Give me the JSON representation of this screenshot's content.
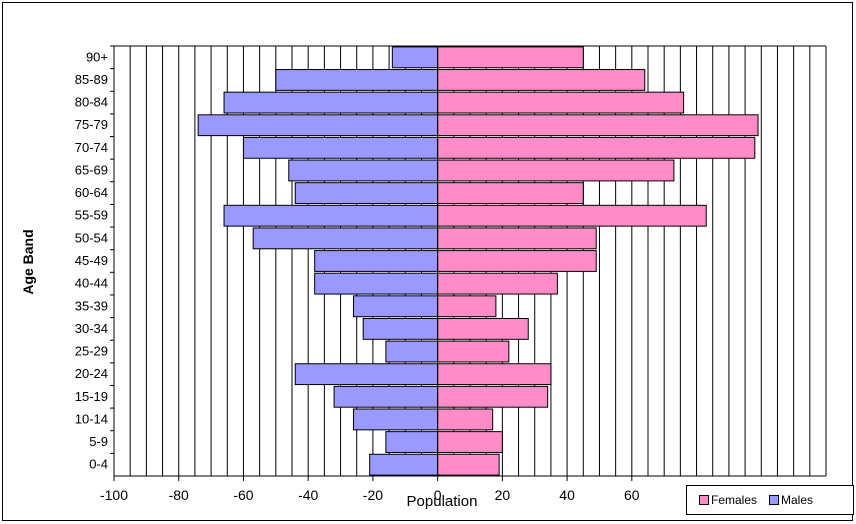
{
  "chart_data": {
    "type": "bar",
    "orientation": "horizontal",
    "subtype": "population-pyramid",
    "title": "",
    "xlabel": "Population",
    "ylabel": "Age Band",
    "categories": [
      "90+",
      "85-89",
      "80-84",
      "75-79",
      "70-74",
      "65-69",
      "60-64",
      "55-59",
      "50-54",
      "45-49",
      "40-44",
      "35-39",
      "30-34",
      "25-29",
      "20-24",
      "15-19",
      "10-14",
      "5-9",
      "0-4"
    ],
    "xlim": [
      -100,
      120
    ],
    "xticks": [
      -100,
      -80,
      -60,
      -40,
      -20,
      0,
      20,
      40,
      60
    ],
    "xtick_labels": [
      "-100",
      "-80",
      "-60",
      "-40",
      "-20",
      "0",
      "20",
      "40",
      "60"
    ],
    "grid": "vertical lines every 5 units",
    "legend_position": "bottom-right",
    "series": [
      {
        "name": "Males",
        "color": "#9999ff",
        "values": [
          -14,
          -50,
          -66,
          -74,
          -60,
          -46,
          -44,
          -66,
          -57,
          -38,
          -38,
          -26,
          -23,
          -16,
          -44,
          -32,
          -26,
          -16,
          -21
        ]
      },
      {
        "name": "Females",
        "color": "#ff8cc6",
        "values": [
          45,
          64,
          76,
          99,
          98,
          73,
          45,
          83,
          49,
          49,
          37,
          18,
          28,
          22,
          35,
          34,
          17,
          20,
          19
        ]
      }
    ],
    "legend": [
      "Females",
      "Males"
    ]
  }
}
